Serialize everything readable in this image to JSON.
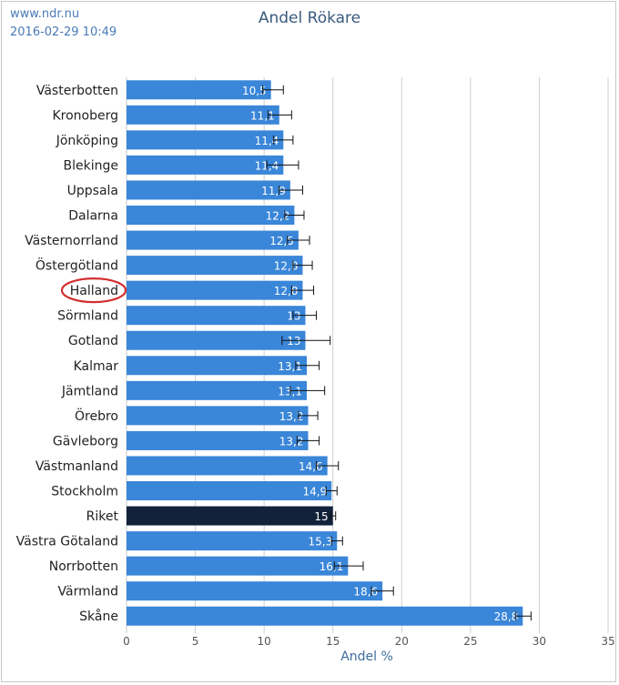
{
  "header": {
    "site": "www.ndr.nu",
    "timestamp": "2016-02-29 10:49"
  },
  "chart_data": {
    "type": "bar",
    "orientation": "horizontal",
    "title": "Andel Rökare",
    "xlabel": "Andel %",
    "ylabel": "",
    "xlim": [
      0,
      35
    ],
    "xticks": [
      0,
      5,
      10,
      15,
      20,
      25,
      30,
      35
    ],
    "grid": true,
    "categories": [
      "Västerbotten",
      "Kronoberg",
      "Jönköping",
      "Blekinge",
      "Uppsala",
      "Dalarna",
      "Västernorrland",
      "Östergötland",
      "Halland",
      "Sörmland",
      "Gotland",
      "Kalmar",
      "Jämtland",
      "Örebro",
      "Gävleborg",
      "Västmanland",
      "Stockholm",
      "Riket",
      "Västra Götaland",
      "Norrbotten",
      "Värmland",
      "Skåne"
    ],
    "values": [
      10.5,
      11.1,
      11.4,
      11.4,
      11.9,
      12.2,
      12.5,
      12.8,
      12.8,
      13,
      13,
      13.1,
      13.1,
      13.2,
      13.2,
      14.6,
      14.9,
      15,
      15.3,
      16.1,
      18.6,
      28.8
    ],
    "value_labels": [
      "10,5",
      "11,1",
      "11,4",
      "11,4",
      "11,9",
      "12,2",
      "12,5",
      "12,8",
      "12,8",
      "13",
      "13",
      "13,1",
      "13,1",
      "13,2",
      "13,2",
      "14,6",
      "14,9",
      "15",
      "15,3",
      "16,1",
      "18,6",
      "28,8"
    ],
    "error_low": [
      9.9,
      10.3,
      10.7,
      10.2,
      11.1,
      11.5,
      11.7,
      12.1,
      12.0,
      12.1,
      11.3,
      12.3,
      11.9,
      12.5,
      12.4,
      13.8,
      14.5,
      14.8,
      14.9,
      15.1,
      17.8,
      28.3
    ],
    "error_high": [
      11.4,
      12.0,
      12.1,
      12.5,
      12.8,
      12.9,
      13.3,
      13.5,
      13.6,
      13.8,
      14.8,
      14.0,
      14.4,
      13.9,
      14.0,
      15.4,
      15.3,
      15.2,
      15.7,
      17.2,
      19.4,
      29.4
    ],
    "highlighted": "Riket",
    "circled": "Halland",
    "colors": {
      "bar": "#3a86d8",
      "highlight_bar": "#12223a",
      "grid": "#d0d0d0",
      "circle": "#d23030",
      "title": "#3b5a7f",
      "axis_label": "#3f6d9e"
    }
  }
}
